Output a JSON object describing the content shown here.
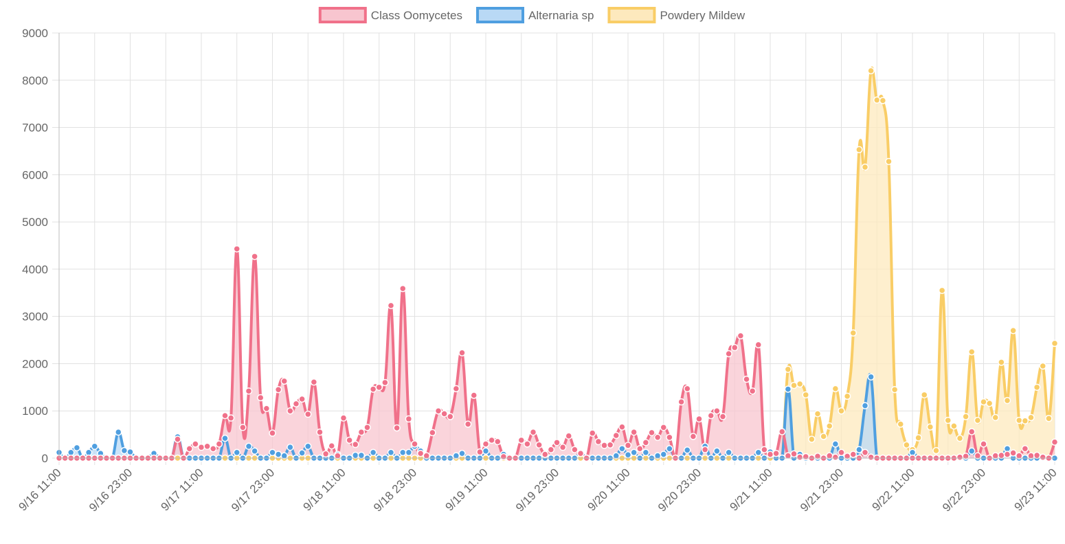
{
  "chart_data": {
    "type": "line",
    "title": "",
    "xlabel": "",
    "ylabel": "",
    "ylim": [
      0,
      9000
    ],
    "yticks": [
      "0",
      "1000",
      "2000",
      "3000",
      "4000",
      "5000",
      "6000",
      "7000",
      "8000",
      "9000"
    ],
    "xticks": [
      "9/16 11:00",
      "9/16 23:00",
      "9/17 11:00",
      "9/17 23:00",
      "9/18 11:00",
      "9/18 23:00",
      "9/19 11:00",
      "9/19 23:00",
      "9/20 11:00",
      "9/20 23:00",
      "9/21 11:00",
      "9/21 23:00",
      "9/22 11:00",
      "9/22 23:00",
      "9/23 11:00"
    ],
    "x_hours_step": 1,
    "legend_position": "top",
    "grid": true,
    "series": [
      {
        "name": "Class Oomycetes",
        "line_color": "#f0718a",
        "fill_color": "#f9c6d0",
        "anchors": [
          [
            0,
            0
          ],
          [
            14,
            0
          ],
          [
            15,
            0
          ],
          [
            16,
            0
          ],
          [
            17,
            0
          ],
          [
            18,
            0
          ],
          [
            19,
            0
          ],
          [
            20,
            0
          ],
          [
            21,
            0
          ],
          [
            22,
            0
          ],
          [
            23,
            0
          ],
          [
            24,
            0
          ],
          [
            25,
            0
          ],
          [
            26,
            0
          ],
          [
            27,
            0
          ],
          [
            28,
            0
          ],
          [
            29,
            0
          ],
          [
            30,
            0
          ],
          [
            31,
            0
          ],
          [
            32,
            0
          ],
          [
            33,
            0
          ],
          [
            34,
            0
          ],
          [
            35,
            0
          ],
          [
            36,
            0
          ],
          [
            37,
            0
          ],
          [
            38,
            0
          ],
          [
            39,
            0
          ],
          [
            40,
            0
          ],
          [
            41,
            0
          ],
          [
            42,
            0
          ],
          [
            43,
            0
          ],
          [
            44,
            0
          ],
          [
            45,
            0
          ],
          [
            46,
            0
          ],
          [
            47,
            0
          ],
          [
            48,
            0
          ],
          [
            49,
            0
          ],
          [
            50,
            0
          ],
          [
            51,
            0
          ],
          [
            52,
            0
          ],
          [
            53,
            0
          ],
          [
            54,
            0
          ],
          [
            55,
            0
          ],
          [
            56,
            0
          ],
          [
            57,
            0
          ],
          [
            58,
            0
          ],
          [
            59,
            0
          ],
          [
            60,
            0
          ],
          [
            61,
            0
          ],
          [
            62,
            0
          ],
          [
            63,
            0
          ],
          [
            64,
            0
          ],
          [
            65,
            0
          ],
          [
            66,
            0
          ],
          [
            67,
            0
          ],
          [
            68,
            0
          ],
          [
            69,
            0
          ],
          [
            70,
            0
          ],
          [
            71,
            0
          ],
          [
            72,
            0
          ],
          [
            73,
            0
          ],
          [
            74,
            0
          ],
          [
            75,
            0
          ],
          [
            76,
            0
          ],
          [
            77,
            0
          ],
          [
            78,
            0
          ],
          [
            79,
            0
          ],
          [
            80,
            0
          ],
          [
            81,
            0
          ],
          [
            82,
            0
          ],
          [
            83,
            0
          ],
          [
            84,
            0
          ],
          [
            85,
            0
          ],
          [
            86,
            0
          ],
          [
            87,
            0
          ],
          [
            88,
            0
          ],
          [
            89,
            0
          ],
          [
            90,
            0
          ],
          [
            91,
            0
          ],
          [
            92,
            0
          ],
          [
            93,
            0
          ],
          [
            94,
            0
          ],
          [
            95,
            0
          ],
          [
            96,
            0
          ],
          [
            97,
            0
          ],
          [
            98,
            0
          ],
          [
            99,
            0
          ],
          [
            100,
            0
          ],
          [
            101,
            0
          ],
          [
            102,
            0
          ],
          [
            103,
            0
          ],
          [
            104,
            0
          ],
          [
            105,
            0
          ],
          [
            106,
            0
          ],
          [
            107,
            0
          ],
          [
            108,
            0
          ],
          [
            109,
            0
          ],
          [
            110,
            0
          ],
          [
            111,
            0
          ],
          [
            112,
            0
          ],
          [
            113,
            0
          ],
          [
            114,
            0
          ],
          [
            115,
            0
          ],
          [
            116,
            0
          ],
          [
            117,
            0
          ],
          [
            118,
            0
          ],
          [
            119,
            0
          ],
          [
            120,
            0
          ],
          [
            121,
            0
          ],
          [
            122,
            0
          ],
          [
            123,
            0
          ],
          [
            124,
            0
          ],
          [
            125,
            0
          ],
          [
            126,
            0
          ],
          [
            127,
            0
          ],
          [
            128,
            0
          ],
          [
            129,
            0
          ],
          [
            130,
            0
          ],
          [
            131,
            0
          ],
          [
            132,
            0
          ],
          [
            133,
            0
          ],
          [
            134,
            0
          ],
          [
            135,
            0
          ],
          [
            136,
            0
          ],
          [
            137,
            0
          ],
          [
            138,
            0
          ],
          [
            139,
            0
          ],
          [
            140,
            0
          ],
          [
            141,
            0
          ],
          [
            142,
            0
          ],
          [
            143,
            0
          ],
          [
            144,
            0
          ],
          [
            145,
            0
          ],
          [
            146,
            0
          ],
          [
            147,
            0
          ],
          [
            148,
            0
          ],
          [
            149,
            0
          ],
          [
            150,
            0
          ],
          [
            151,
            0
          ],
          [
            152,
            0
          ],
          [
            153,
            0
          ],
          [
            154,
            0
          ],
          [
            155,
            0
          ],
          [
            156,
            0
          ],
          [
            157,
            0
          ],
          [
            158,
            0
          ],
          [
            159,
            0
          ],
          [
            160,
            0
          ],
          [
            161,
            0
          ],
          [
            162,
            0
          ],
          [
            163,
            0
          ],
          [
            164,
            0
          ],
          [
            165,
            0
          ],
          [
            166,
            0
          ],
          [
            167,
            0
          ],
          [
            168,
            0
          ]
        ],
        "values_override": [
          0,
          0,
          0,
          0,
          0,
          0,
          0,
          0,
          0,
          0,
          0,
          0,
          0,
          0,
          0,
          0,
          0,
          0,
          0,
          0,
          0,
          0,
          0,
          0,
          0,
          0,
          0,
          0,
          0,
          0,
          0,
          0,
          0,
          0,
          0,
          0,
          0,
          0,
          0,
          0,
          0,
          0,
          0,
          0,
          0,
          0,
          0,
          0,
          0,
          0,
          0,
          0,
          0,
          0,
          0,
          0,
          0,
          0,
          0,
          0,
          0,
          0,
          0,
          0,
          0,
          0,
          0,
          0,
          0,
          0,
          0,
          0,
          0,
          0,
          0,
          0,
          0,
          0,
          0,
          0,
          0,
          0,
          0,
          0,
          0,
          0,
          0,
          0,
          0,
          0,
          0,
          0,
          0,
          0,
          0,
          0,
          0,
          0,
          0,
          0,
          0,
          0,
          0,
          0,
          0,
          0,
          0,
          0,
          0,
          0,
          0,
          0,
          0,
          0,
          0,
          0,
          0,
          0,
          0,
          0,
          0,
          0,
          0,
          0,
          0,
          0,
          0,
          0,
          0,
          0,
          0,
          0,
          0,
          0,
          0,
          0,
          0,
          0,
          0,
          0,
          0,
          0,
          0,
          0,
          0,
          0,
          0,
          0,
          0,
          0,
          0,
          0,
          0,
          0,
          0,
          0,
          0,
          0,
          0,
          0,
          0,
          0,
          0,
          0,
          0,
          0,
          0,
          0,
          0
        ]
      }
    ]
  }
}
